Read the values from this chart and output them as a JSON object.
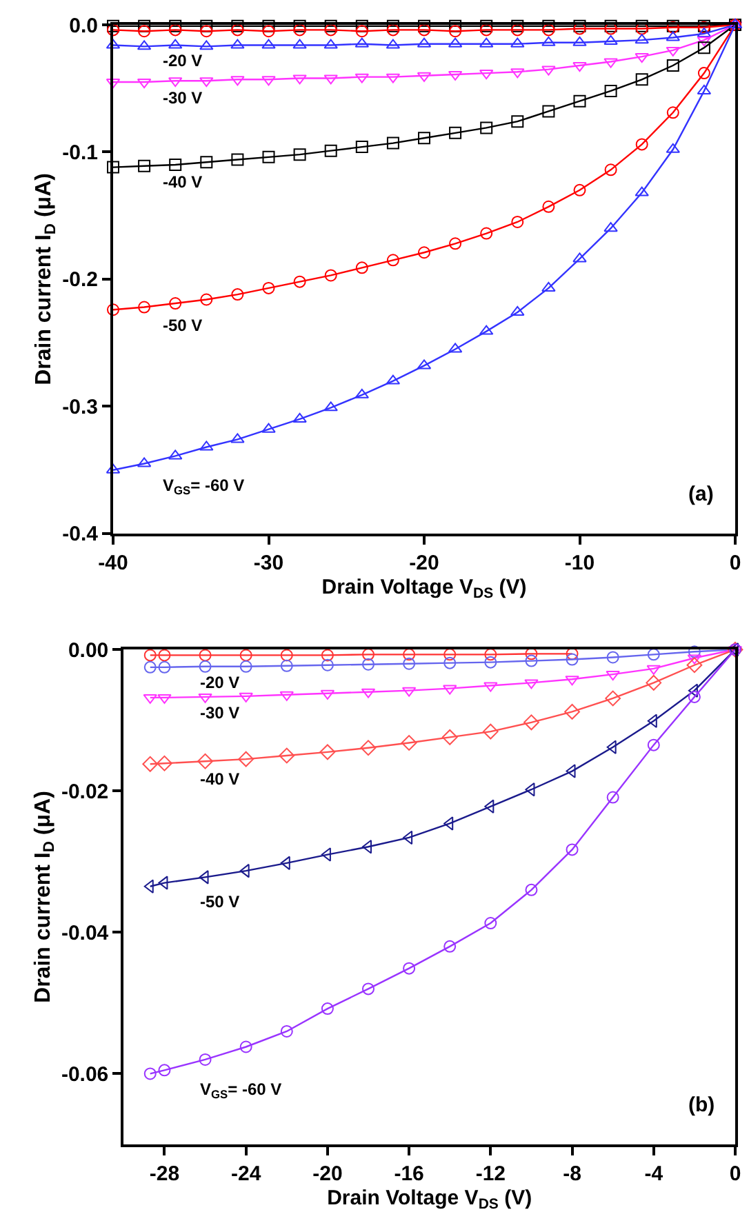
{
  "chart_data": [
    {
      "type": "line",
      "xlabel": "Drain Voltage V$_{DS}$ (V)",
      "ylabel": "Drain current I$_{D}$ (μA)",
      "annotations": [
        "(a)"
      ],
      "x": [
        -40,
        -38,
        -36,
        -34,
        -32,
        -30,
        -28,
        -26,
        -24,
        -22,
        -20,
        -18,
        -16,
        -14,
        -12,
        -10,
        -8,
        -6,
        -4,
        -2,
        0
      ],
      "xlim": [
        -40,
        0
      ],
      "xticks": [
        -40,
        -30,
        -20,
        -10,
        0
      ],
      "ylim": [
        -0.4,
        0
      ],
      "yticks": [
        {
          "value": 0,
          "label": "0.0"
        },
        -0.1,
        -0.2,
        -0.3,
        -0.4
      ],
      "grid": false,
      "legend": false,
      "line_style": "solid",
      "series": [
        {
          "color": "#000000",
          "marker": "square",
          "values": [
            -0.001,
            -0.001,
            -0.001,
            -0.001,
            -0.001,
            -0.001,
            -0.001,
            -0.001,
            -0.001,
            -0.001,
            -0.001,
            -0.001,
            -0.001,
            -0.001,
            -0.001,
            -0.001,
            -0.001,
            -0.001,
            -0.001,
            -0.001,
            0
          ]
        },
        {
          "color": "#ff0000",
          "marker": "circle",
          "values": [
            -0.004,
            -0.005,
            -0.004,
            -0.005,
            -0.004,
            -0.005,
            -0.004,
            -0.004,
            -0.005,
            -0.004,
            -0.004,
            -0.005,
            -0.004,
            -0.004,
            -0.004,
            -0.003,
            -0.003,
            -0.003,
            -0.002,
            -0.002,
            0
          ]
        },
        {
          "name": "-20 V",
          "color": "#3333ff",
          "marker": "triangle",
          "values": [
            -0.016,
            -0.017,
            -0.016,
            -0.017,
            -0.016,
            -0.016,
            -0.016,
            -0.016,
            -0.015,
            -0.016,
            -0.015,
            -0.015,
            -0.015,
            -0.015,
            -0.014,
            -0.014,
            -0.013,
            -0.012,
            -0.01,
            -0.007,
            0
          ]
        },
        {
          "name": "-30 V",
          "color": "#ff33ff",
          "marker": "triangle-down",
          "values": [
            -0.045,
            -0.045,
            -0.044,
            -0.044,
            -0.043,
            -0.043,
            -0.042,
            -0.042,
            -0.041,
            -0.041,
            -0.04,
            -0.039,
            -0.038,
            -0.037,
            -0.035,
            -0.032,
            -0.029,
            -0.025,
            -0.02,
            -0.012,
            0
          ]
        },
        {
          "name": "-40 V",
          "color": "#000000",
          "marker": "square",
          "values": [
            -0.112,
            -0.111,
            -0.11,
            -0.108,
            -0.106,
            -0.104,
            -0.102,
            -0.099,
            -0.096,
            -0.093,
            -0.089,
            -0.085,
            -0.081,
            -0.076,
            -0.068,
            -0.06,
            -0.052,
            -0.043,
            -0.032,
            -0.018,
            0
          ]
        },
        {
          "name": "-50 V",
          "color": "#ff0000",
          "marker": "circle",
          "values": [
            -0.224,
            -0.222,
            -0.219,
            -0.216,
            -0.212,
            -0.207,
            -0.202,
            -0.197,
            -0.191,
            -0.185,
            -0.179,
            -0.172,
            -0.164,
            -0.155,
            -0.143,
            -0.13,
            -0.114,
            -0.094,
            -0.069,
            -0.038,
            0
          ]
        },
        {
          "name": "V$_{GS}$= -60 V",
          "color": "#3333ff",
          "marker": "triangle",
          "values": [
            -0.35,
            -0.345,
            -0.339,
            -0.332,
            -0.326,
            -0.318,
            -0.31,
            -0.301,
            -0.291,
            -0.28,
            -0.268,
            -0.255,
            -0.241,
            -0.226,
            -0.207,
            -0.184,
            -0.16,
            -0.132,
            -0.098,
            -0.052,
            0
          ]
        }
      ]
    },
    {
      "type": "line",
      "xlabel": "Drain Voltage V$_{DS}$ (V)",
      "ylabel": "Drain current I$_{D}$ (μA)",
      "annotations": [
        "(b)"
      ],
      "x": [
        -28.7,
        -28,
        -26,
        -24,
        -22,
        -20,
        -18,
        -16,
        -14,
        -12,
        -10,
        -8,
        -6,
        -4,
        -2,
        0
      ],
      "xlim": [
        -30,
        0
      ],
      "xticks": [
        -28,
        -24,
        -20,
        -16,
        -12,
        -8,
        -4,
        0
      ],
      "ylim": [
        -0.07,
        0
      ],
      "yticks": [
        {
          "value": 0,
          "label": "0.00"
        },
        {
          "value": -0.02,
          "label": "-0.02"
        },
        {
          "value": -0.04,
          "label": "-0.04"
        },
        {
          "value": -0.06,
          "label": "-0.06"
        }
      ],
      "grid": false,
      "legend": false,
      "line_style": "solid",
      "series": [
        {
          "color": "#ff3333",
          "marker": "circle",
          "values": [
            -0.0008,
            -0.0008,
            -0.0008,
            -0.0008,
            -0.0008,
            -0.0008,
            -0.0007,
            -0.0007,
            -0.0007,
            -0.0007,
            -0.0006,
            -0.0006,
            null,
            null,
            null,
            0
          ]
        },
        {
          "name": "-20 V",
          "color": "#6666ee",
          "marker": "circle",
          "values": [
            -0.0025,
            -0.0025,
            -0.0024,
            -0.0024,
            -0.0023,
            -0.0022,
            -0.0021,
            -0.002,
            -0.0019,
            -0.0018,
            -0.0016,
            -0.0014,
            -0.0011,
            -0.0007,
            -0.0003,
            0
          ]
        },
        {
          "name": "-30 V",
          "color": "#ff33ff",
          "marker": "triangle-down",
          "values": [
            -0.0068,
            -0.0068,
            -0.0067,
            -0.0066,
            -0.0064,
            -0.0062,
            -0.006,
            -0.0058,
            -0.0055,
            -0.0051,
            -0.0047,
            -0.0042,
            -0.0035,
            -0.0027,
            -0.0012,
            0
          ]
        },
        {
          "name": "-40 V",
          "color": "#ff5050",
          "marker": "diamond",
          "values": [
            -0.0162,
            -0.0161,
            -0.0158,
            -0.0155,
            -0.015,
            -0.0145,
            -0.0139,
            -0.0132,
            -0.0124,
            -0.0116,
            -0.0103,
            -0.0088,
            -0.0069,
            -0.0047,
            -0.0022,
            0
          ]
        },
        {
          "name": "-50 V",
          "color": "#1a1a8c",
          "marker": "triangle-left",
          "values": [
            -0.0335,
            -0.033,
            -0.0322,
            -0.0313,
            -0.0302,
            -0.029,
            -0.0279,
            -0.0266,
            -0.0246,
            -0.0222,
            -0.0198,
            -0.0172,
            -0.0138,
            -0.0101,
            -0.0058,
            0
          ]
        },
        {
          "name": "V$_{GS}$= -60 V",
          "color": "#9933ff",
          "marker": "circle",
          "values": [
            -0.06,
            -0.0595,
            -0.058,
            -0.0562,
            -0.054,
            -0.0508,
            -0.048,
            -0.0451,
            -0.042,
            -0.0387,
            -0.034,
            -0.0283,
            -0.0209,
            -0.0135,
            -0.0067,
            0
          ]
        }
      ]
    }
  ]
}
